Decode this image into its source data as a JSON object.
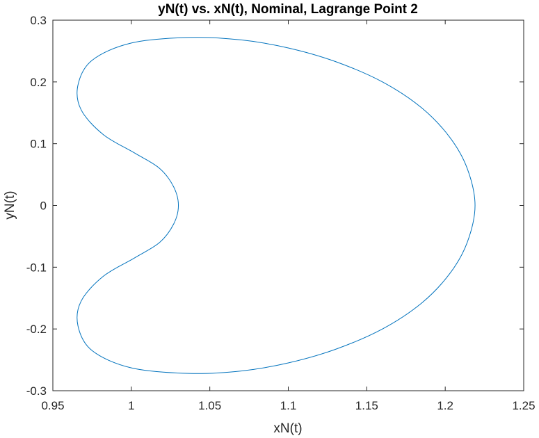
{
  "chart_data": {
    "type": "line",
    "title": "yN(t) vs. xN(t), Nominal, Lagrange Point 2",
    "xlabel": "xN(t)",
    "ylabel": "yN(t)",
    "xlim": [
      0.95,
      1.25
    ],
    "ylim": [
      -0.3,
      0.3
    ],
    "xticks": [
      "0.95",
      "1",
      "1.05",
      "1.1",
      "1.15",
      "1.2",
      "1.25"
    ],
    "yticks": [
      "0.3",
      "0.2",
      "0.1",
      "0",
      "-0.1",
      "-0.2",
      "-0.3"
    ],
    "grid": false,
    "box": true,
    "series": [
      {
        "color": "#0072BD",
        "x": [
          1.03,
          1.027,
          1.018,
          1.002,
          0.982,
          0.968,
          0.966,
          0.975,
          1.0,
          1.037,
          1.07,
          1.1,
          1.13,
          1.16,
          1.185,
          1.203,
          1.214,
          1.219,
          1.214,
          1.203,
          1.185,
          1.16,
          1.13,
          1.1,
          1.07,
          1.037,
          1.0,
          0.975,
          0.966,
          0.968,
          0.982,
          1.002,
          1.018,
          1.027,
          1.03
        ],
        "y": [
          0.0,
          0.03,
          0.06,
          0.085,
          0.115,
          0.155,
          0.195,
          0.235,
          0.263,
          0.272,
          0.268,
          0.255,
          0.233,
          0.2,
          0.158,
          0.11,
          0.06,
          0.0,
          -0.06,
          -0.11,
          -0.158,
          -0.2,
          -0.233,
          -0.255,
          -0.268,
          -0.272,
          -0.263,
          -0.235,
          -0.195,
          -0.155,
          -0.115,
          -0.085,
          -0.06,
          -0.03,
          0.0
        ]
      }
    ]
  }
}
